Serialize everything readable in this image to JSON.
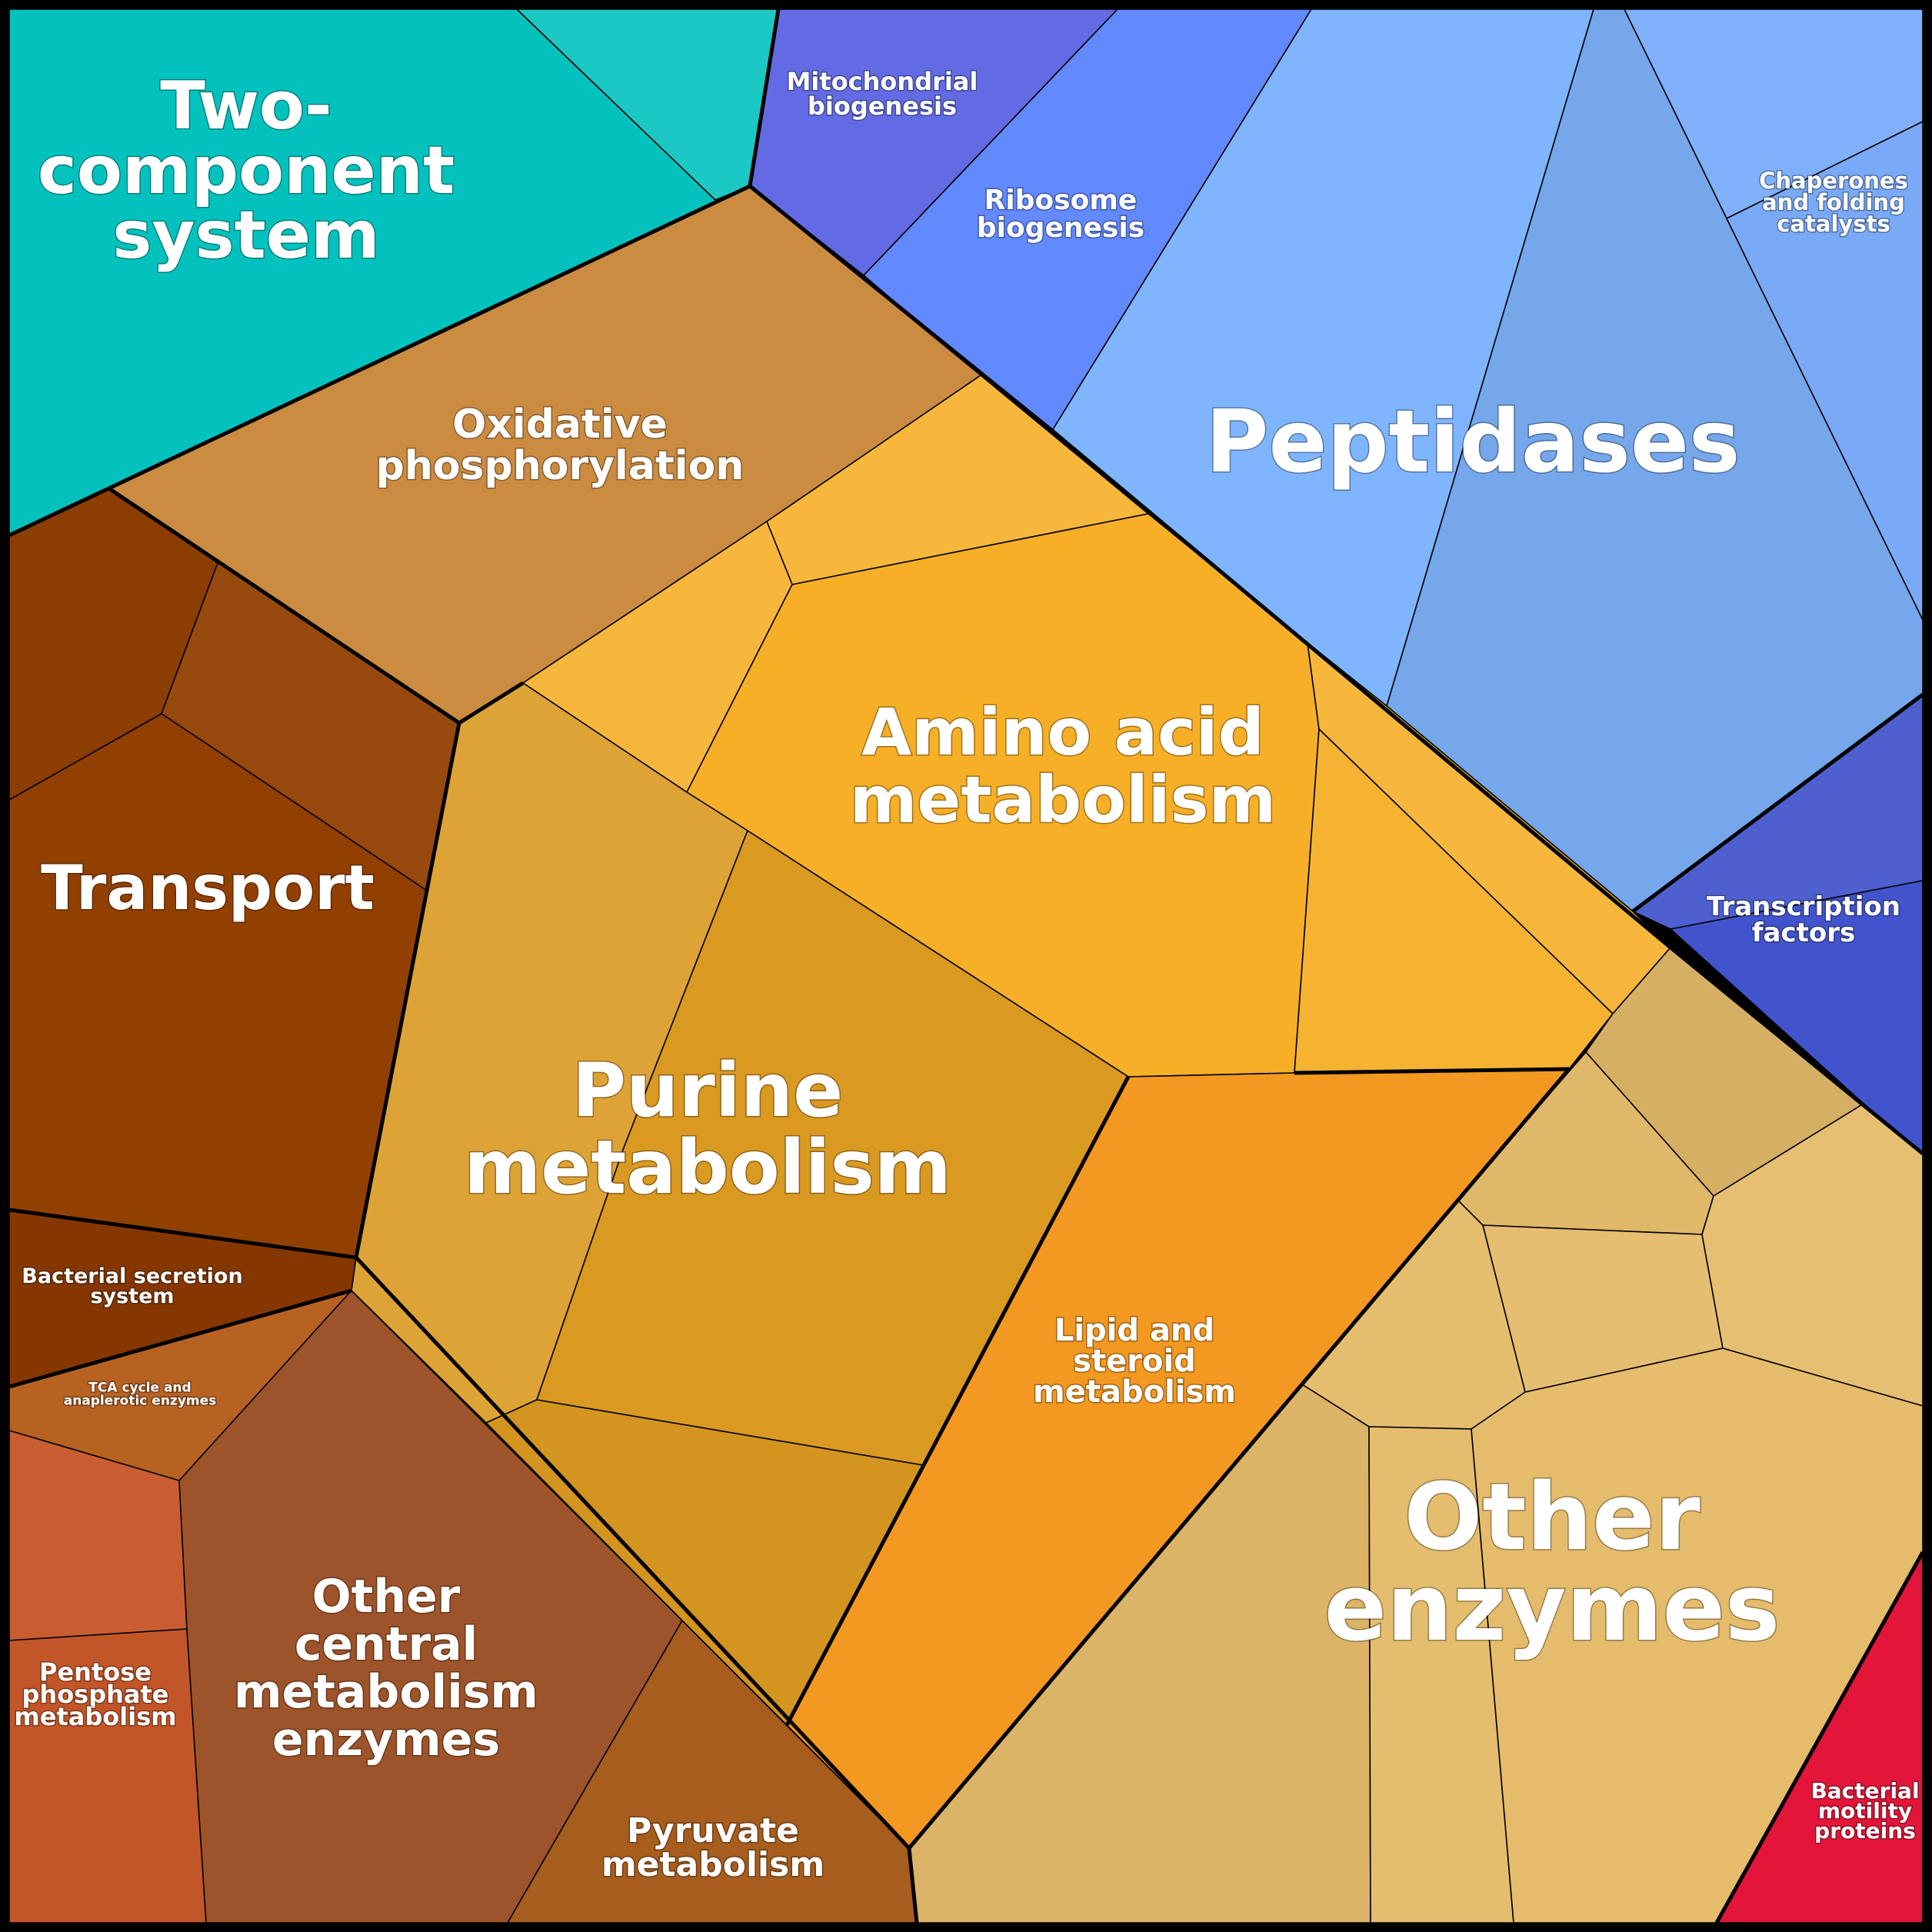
{
  "title": "",
  "regions": [
    {
      "key": "two-component",
      "label": "Two-\ncomponent\nsystem",
      "color": "#03C2BE"
    },
    {
      "key": "mitochondrial",
      "label": "Mitochondrial\nbiogenesis",
      "color": "#626BE3"
    },
    {
      "key": "ribosome",
      "label": "Ribosome\nbiogenesis",
      "color": "#6289FE"
    },
    {
      "key": "peptidases",
      "label": "Peptidases",
      "color": "#7FB5FE"
    },
    {
      "key": "chaperones",
      "label": "Chaperones\nand folding\ncatalysts",
      "color": "#7CADFC"
    },
    {
      "key": "transcription",
      "label": "Transcription\nfactors",
      "color": "#4254CD"
    },
    {
      "key": "oxidative",
      "label": "Oxidative\nphosphorylation",
      "color": "#CB8C42"
    },
    {
      "key": "amino",
      "label": "Amino acid\nmetabolism",
      "color": "#F6AF27"
    },
    {
      "key": "purine",
      "label": "Purine\nmetabolism",
      "color": "#DA9921"
    },
    {
      "key": "lipid",
      "label": "Lipid and\nsteroid\nmetabolism",
      "color": "#F39820"
    },
    {
      "key": "transport",
      "label": "Transport",
      "color": "#924002"
    },
    {
      "key": "secretion",
      "label": "Bacterial secretion\nsystem",
      "color": "#863700"
    },
    {
      "key": "tca",
      "label": "TCA cycle and\nanaplerotic enzymes",
      "color": "#B86222"
    },
    {
      "key": "pentose",
      "label": "Pentose\nphosphate\nmetabolism",
      "color": "#C7582A"
    },
    {
      "key": "other-central",
      "label": "Other\ncentral\nmetabolism\nenzymes",
      "color": "#9E542A"
    },
    {
      "key": "pyruvate",
      "label": "Pyruvate\nmetabolism",
      "color": "#A65D1D"
    },
    {
      "key": "other-enzymes",
      "label": "Other\nenzymes",
      "color": "#E5BC6C"
    },
    {
      "key": "motility",
      "label": "Bacterial\nmotility\nproteins",
      "color": "#E3163A"
    }
  ]
}
